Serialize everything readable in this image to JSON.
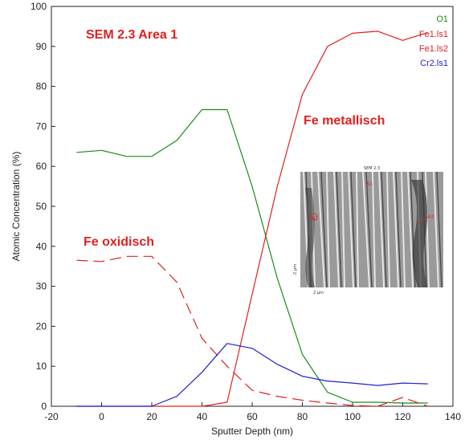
{
  "chart_data": {
    "type": "line",
    "xlabel": "Sputter Depth (nm)",
    "ylabel": "Atomic Concentration (%)",
    "xlim": [
      -20,
      140
    ],
    "ylim": [
      0,
      100
    ],
    "xticks": [
      -20,
      0,
      20,
      40,
      60,
      80,
      100,
      120,
      140
    ],
    "yticks": [
      0,
      10,
      20,
      30,
      40,
      50,
      60,
      70,
      80,
      90,
      100
    ],
    "grid": false,
    "legend_position": "top-right",
    "series": [
      {
        "name": "O1",
        "color": "#1a8a1a",
        "style": "solid",
        "x": [
          -10,
          0,
          10,
          20,
          30,
          40,
          50,
          60,
          70,
          80,
          90,
          100,
          110,
          120,
          130
        ],
        "y": [
          63.5,
          64,
          62.5,
          62.5,
          66.5,
          74.2,
          74.2,
          55,
          32,
          13,
          3.5,
          1,
          1,
          0.8,
          0.8
        ]
      },
      {
        "name": "Fe1.ls1",
        "color": "#e02020",
        "style": "solid",
        "x": [
          -10,
          0,
          10,
          20,
          30,
          40,
          50,
          60,
          70,
          80,
          90,
          100,
          110,
          120,
          130
        ],
        "y": [
          0,
          0,
          0,
          0,
          0,
          0,
          1,
          28,
          55,
          78,
          90,
          93.3,
          93.8,
          91.5,
          93.5
        ]
      },
      {
        "name": "Fe1.ls2",
        "color": "#e02020",
        "style": "dashed",
        "x": [
          -10,
          0,
          10,
          20,
          30,
          40,
          50,
          60,
          70,
          80,
          90,
          100,
          110,
          120,
          130
        ],
        "y": [
          36.5,
          36.2,
          37.5,
          37.5,
          31,
          17,
          10,
          4,
          2.5,
          1.5,
          0.8,
          0.2,
          0,
          2.2,
          0
        ]
      },
      {
        "name": "Cr2.ls1",
        "color": "#2020d0",
        "style": "solid",
        "x": [
          -10,
          0,
          10,
          20,
          30,
          40,
          50,
          60,
          70,
          80,
          90,
          100,
          110,
          120,
          130
        ],
        "y": [
          0,
          0,
          0,
          0,
          2.5,
          8.5,
          15.7,
          14.5,
          10.5,
          7.5,
          6.3,
          5.8,
          5.2,
          5.8,
          5.6
        ]
      }
    ],
    "annotations": {
      "title_text": "SEM 2.3  Area 1",
      "fe_metallisch": "Fe metallisch",
      "fe_oxidisch": "Fe oxidisch"
    },
    "inset": {
      "title": "SEM 2.3",
      "markers": [
        "A1",
        "A2",
        "A3"
      ],
      "scale_x": "2 µm",
      "scale_y": "2 µm"
    },
    "colors": {
      "annotation": "#e02020",
      "axis": "#222222"
    }
  }
}
